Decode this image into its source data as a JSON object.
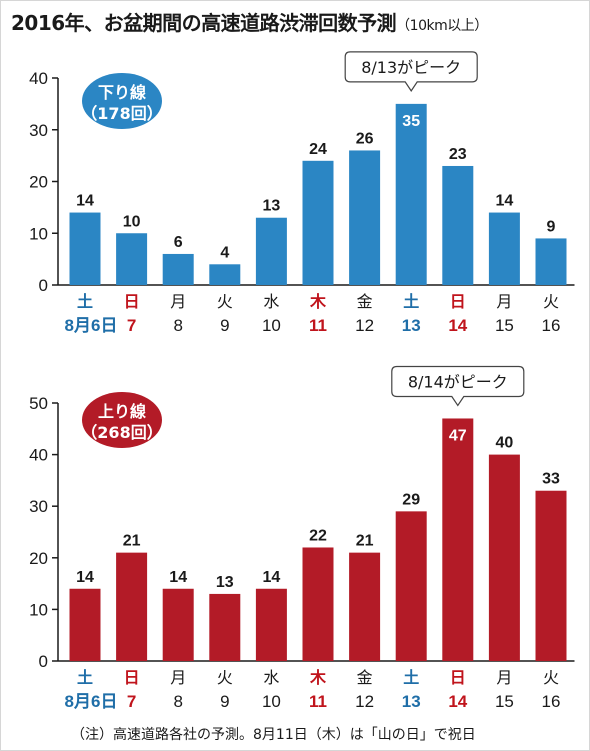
{
  "title": "2016年、お盆期間の高速道路渋滞回数予測",
  "title_sub": "（10km以上）",
  "note": "（注）高速道路各社の予測。8月11日（木）は「山の日」で祝日",
  "colors": {
    "blue_bar": "#2b86c4",
    "red_bar": "#b31b27",
    "blue_text": "#1f6ea8",
    "red_text": "#c0141c",
    "black_text": "#1a1a1a"
  },
  "chart_data": [
    {
      "type": "bar",
      "badge": [
        "下り線",
        "（178回）"
      ],
      "callout": "8/13がピーク",
      "callout_index": 7,
      "ylim": [
        0,
        40
      ],
      "yticks": [
        0,
        10,
        20,
        30,
        40
      ],
      "categories_dow": [
        "土",
        "日",
        "月",
        "火",
        "水",
        "木",
        "金",
        "土",
        "日",
        "月",
        "火"
      ],
      "categories_day": [
        "8月6日",
        "7",
        "8",
        "9",
        "10",
        "11",
        "12",
        "13",
        "14",
        "15",
        "16"
      ],
      "category_colors": [
        "blue",
        "red",
        "black",
        "black",
        "black",
        "red",
        "black",
        "blue",
        "red",
        "black",
        "black"
      ],
      "values": [
        14,
        10,
        6,
        4,
        13,
        24,
        26,
        35,
        23,
        14,
        9
      ],
      "bar_color": "blue",
      "label_inside_index": 7
    },
    {
      "type": "bar",
      "badge": [
        "上り線",
        "（268回）"
      ],
      "callout": "8/14がピーク",
      "callout_index": 8,
      "ylim": [
        0,
        50
      ],
      "yticks": [
        0,
        10,
        20,
        30,
        40,
        50
      ],
      "categories_dow": [
        "土",
        "日",
        "月",
        "火",
        "水",
        "木",
        "金",
        "土",
        "日",
        "月",
        "火"
      ],
      "categories_day": [
        "8月6日",
        "7",
        "8",
        "9",
        "10",
        "11",
        "12",
        "13",
        "14",
        "15",
        "16"
      ],
      "category_colors": [
        "blue",
        "red",
        "black",
        "black",
        "black",
        "red",
        "black",
        "blue",
        "red",
        "black",
        "black"
      ],
      "values": [
        14,
        21,
        14,
        13,
        14,
        22,
        21,
        29,
        47,
        40,
        33
      ],
      "bar_color": "red",
      "label_inside_index": 8
    }
  ]
}
